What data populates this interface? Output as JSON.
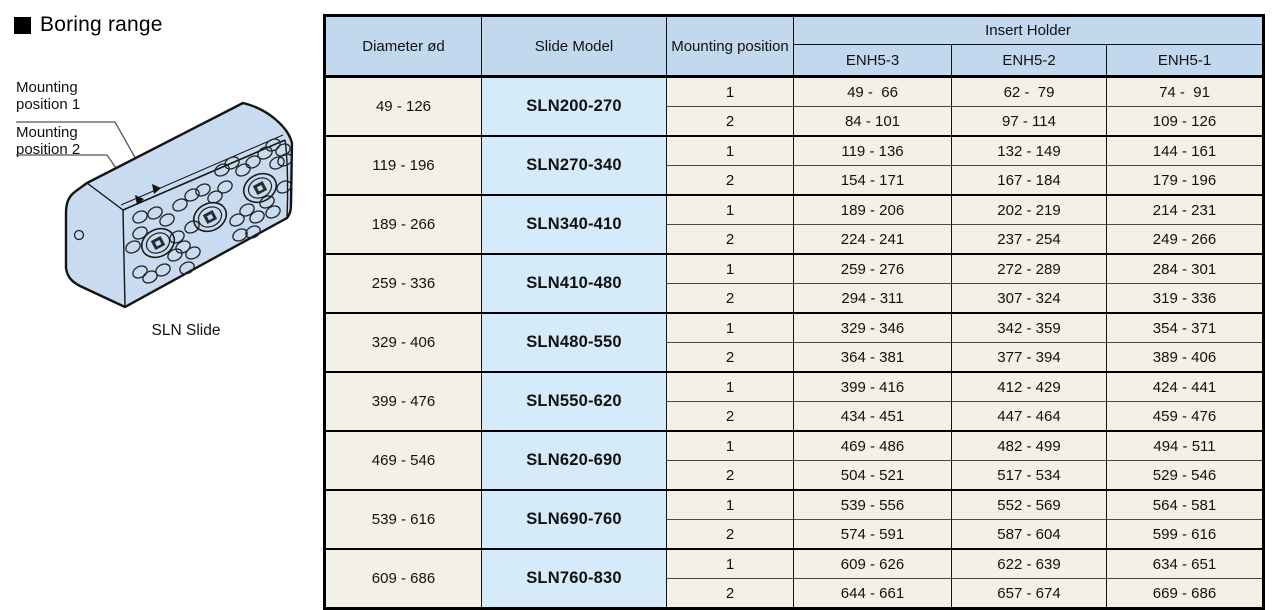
{
  "page": {
    "title": "Boring range",
    "caption": "SLN Slide",
    "labels": {
      "mounting_position_1": "Mounting\nposition 1",
      "mounting_position_2": "Mounting\nposition 2"
    }
  },
  "colors": {
    "header_blue": "#c2d8ee",
    "model_blue": "#d5ebf9",
    "cell_cream": "#f3f0e5",
    "slide_body_blue": "#c9dbf0",
    "border_black": "#000000"
  },
  "table": {
    "headers": {
      "diameter": "Diameter ød",
      "model": "Slide Model",
      "mounting": "Mounting position",
      "insert_holder": "Insert Holder",
      "enh": [
        "ENH5-3",
        "ENH5-2",
        "ENH5-1"
      ]
    },
    "groups": [
      {
        "diameter": "49 - 126",
        "model": "SLN200-270",
        "rows": [
          {
            "position": "1",
            "values": [
              "49 -  66",
              "62 -  79",
              "74 -  91"
            ]
          },
          {
            "position": "2",
            "values": [
              "84 - 101",
              "97 - 114",
              "109 - 126"
            ]
          }
        ]
      },
      {
        "diameter": "119 - 196",
        "model": "SLN270-340",
        "rows": [
          {
            "position": "1",
            "values": [
              "119 - 136",
              "132 - 149",
              "144 - 161"
            ]
          },
          {
            "position": "2",
            "values": [
              "154 - 171",
              "167 - 184",
              "179 - 196"
            ]
          }
        ]
      },
      {
        "diameter": "189 - 266",
        "model": "SLN340-410",
        "rows": [
          {
            "position": "1",
            "values": [
              "189 - 206",
              "202 - 219",
              "214 - 231"
            ]
          },
          {
            "position": "2",
            "values": [
              "224 - 241",
              "237 - 254",
              "249 - 266"
            ]
          }
        ]
      },
      {
        "diameter": "259 - 336",
        "model": "SLN410-480",
        "rows": [
          {
            "position": "1",
            "values": [
              "259 - 276",
              "272 - 289",
              "284 - 301"
            ]
          },
          {
            "position": "2",
            "values": [
              "294 - 311",
              "307 - 324",
              "319 - 336"
            ]
          }
        ]
      },
      {
        "diameter": "329 - 406",
        "model": "SLN480-550",
        "rows": [
          {
            "position": "1",
            "values": [
              "329 - 346",
              "342 - 359",
              "354 - 371"
            ]
          },
          {
            "position": "2",
            "values": [
              "364 - 381",
              "377 - 394",
              "389 - 406"
            ]
          }
        ]
      },
      {
        "diameter": "399 - 476",
        "model": "SLN550-620",
        "rows": [
          {
            "position": "1",
            "values": [
              "399 - 416",
              "412 - 429",
              "424 - 441"
            ]
          },
          {
            "position": "2",
            "values": [
              "434 - 451",
              "447 - 464",
              "459 - 476"
            ]
          }
        ]
      },
      {
        "diameter": "469 - 546",
        "model": "SLN620-690",
        "rows": [
          {
            "position": "1",
            "values": [
              "469 - 486",
              "482 - 499",
              "494 - 511"
            ]
          },
          {
            "position": "2",
            "values": [
              "504 - 521",
              "517 - 534",
              "529 - 546"
            ]
          }
        ]
      },
      {
        "diameter": "539 - 616",
        "model": "SLN690-760",
        "rows": [
          {
            "position": "1",
            "values": [
              "539 - 556",
              "552 - 569",
              "564 - 581"
            ]
          },
          {
            "position": "2",
            "values": [
              "574 - 591",
              "587 - 604",
              "599 - 616"
            ]
          }
        ]
      },
      {
        "diameter": "609 - 686",
        "model": "SLN760-830",
        "rows": [
          {
            "position": "1",
            "values": [
              "609 - 626",
              "622 - 639",
              "634 - 651"
            ]
          },
          {
            "position": "2",
            "values": [
              "644 - 661",
              "657 - 674",
              "669 - 686"
            ]
          }
        ]
      }
    ]
  }
}
